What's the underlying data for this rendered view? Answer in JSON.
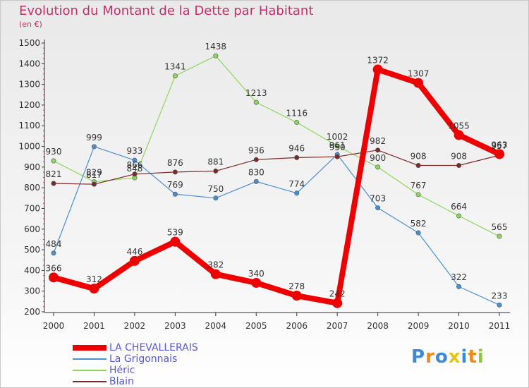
{
  "title": "Evolution du Montant de la Dette par Habitant",
  "unit_label": "(en €)",
  "logo_text": "Proxiti",
  "chart_data": {
    "type": "line",
    "title": "Evolution du Montant de la Dette par Habitant",
    "subtitle": "(en €)",
    "xlabel": "",
    "ylabel": "",
    "x": [
      "2000",
      "2001",
      "2002",
      "2003",
      "2004",
      "2005",
      "2006",
      "2007",
      "2008",
      "2009",
      "2010",
      "2011"
    ],
    "ylim": [
      200,
      1500
    ],
    "yticks": [
      "200",
      "300",
      "400",
      "500",
      "600",
      "700",
      "800",
      "900",
      "1000",
      "1100",
      "1200",
      "1300",
      "1400",
      "1500"
    ],
    "grid": false,
    "legend": "bottom-left",
    "series": [
      {
        "name": "LA CHEVALLERAIS",
        "color": "#ee0000",
        "values": [
          366,
          312,
          446,
          539,
          382,
          340,
          278,
          242,
          1372,
          1307,
          1055,
          963
        ],
        "labels": [
          "366",
          "312",
          "446",
          "539",
          "382",
          "340",
          "278",
          "242",
          "1372",
          "1307",
          "1055",
          "963"
        ]
      },
      {
        "name": "La Grigonnais",
        "color": "#4a8fd0",
        "values": [
          484,
          999,
          933,
          769,
          750,
          830,
          774,
          961,
          703,
          582,
          322,
          233
        ],
        "labels": [
          "484",
          "999",
          "933",
          "769",
          "750",
          "830",
          "774",
          "961",
          "703",
          "582",
          "322",
          "233"
        ]
      },
      {
        "name": "Héric",
        "color": "#8ed65a",
        "values": [
          930,
          829,
          848,
          1341,
          1438,
          1213,
          1116,
          1002,
          900,
          767,
          664,
          565
        ],
        "labels": [
          "930",
          "829",
          "848",
          "1341",
          "1438",
          "1213",
          "1116",
          "1002",
          "900",
          "767",
          "664",
          "565"
        ]
      },
      {
        "name": "Blain",
        "color": "#7a2a2a",
        "values": [
          821,
          817,
          866,
          876,
          881,
          936,
          946,
          950,
          982,
          908,
          908,
          957
        ],
        "labels": [
          "821",
          "817",
          "866",
          "876",
          "881",
          "936",
          "946",
          "950",
          "982",
          "908",
          "908",
          "957"
        ]
      }
    ]
  }
}
